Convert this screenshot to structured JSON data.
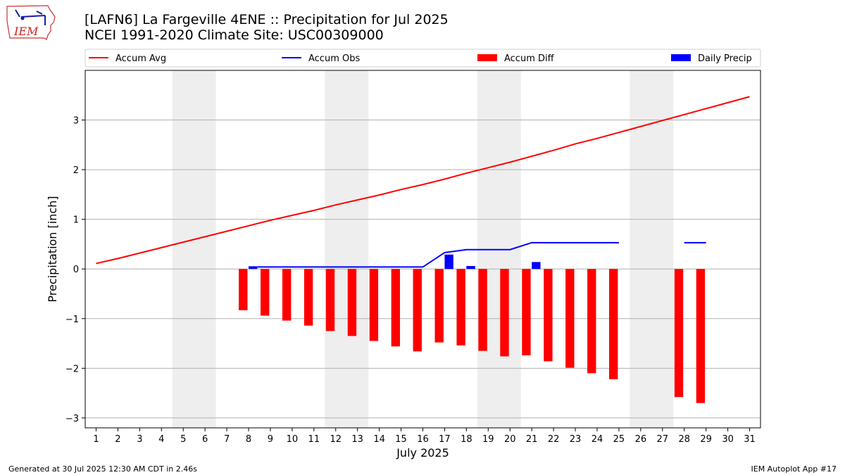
{
  "header": {
    "title": "[LAFN6] La Fargeville 4ENE :: Precipitation for Jul 2025",
    "subtitle": "NCEI 1991-2020 Climate Site: USC00309000"
  },
  "logo": {
    "text": "IEM",
    "icon": "iem-iowa-logo"
  },
  "footer": {
    "generated": "Generated at 30 Jul 2025 12:30 AM CDT in 2.46s",
    "app": "IEM Autoplot App #17"
  },
  "chart_data": {
    "type": "bar",
    "xlabel": "July 2025",
    "ylabel": "Precipitation [inch]",
    "xlim": [
      0.5,
      31.5
    ],
    "ylim": [
      -3.2,
      4.0
    ],
    "x_ticks": [
      1,
      2,
      3,
      4,
      5,
      6,
      7,
      8,
      9,
      10,
      11,
      12,
      13,
      14,
      15,
      16,
      17,
      18,
      19,
      20,
      21,
      22,
      23,
      24,
      25,
      26,
      27,
      28,
      29,
      30,
      31
    ],
    "y_ticks": [
      -3,
      -2,
      -1,
      0,
      1,
      2,
      3
    ],
    "y_tick_labels": [
      "−3",
      "−2",
      "−1",
      "0",
      "1",
      "2",
      "3"
    ],
    "grid": "horizontal",
    "legend_position": "top",
    "weekend_shading": [
      [
        4.5,
        6.5
      ],
      [
        11.5,
        13.5
      ],
      [
        18.5,
        20.5
      ],
      [
        25.5,
        27.5
      ]
    ],
    "colors": {
      "avg": "#ff0000",
      "obs": "#0000ff",
      "diff": "#ff0000",
      "daily": "#0000ff",
      "shade": "#eeeeee"
    },
    "series": [
      {
        "name": "Accum Avg",
        "kind": "line",
        "x": [
          1,
          2,
          3,
          4,
          5,
          6,
          7,
          8,
          9,
          10,
          11,
          12,
          13,
          14,
          15,
          16,
          17,
          18,
          19,
          20,
          21,
          22,
          23,
          24,
          25,
          26,
          27,
          28,
          29,
          30,
          31
        ],
        "values": [
          0.11,
          0.21,
          0.32,
          0.43,
          0.54,
          0.65,
          0.76,
          0.87,
          0.98,
          1.08,
          1.18,
          1.29,
          1.39,
          1.49,
          1.6,
          1.7,
          1.81,
          1.93,
          2.04,
          2.15,
          2.27,
          2.39,
          2.52,
          2.63,
          2.75,
          2.87,
          2.99,
          3.11,
          3.23,
          3.35,
          3.47
        ]
      },
      {
        "name": "Accum Obs",
        "kind": "line",
        "segments": [
          {
            "x": [
              8,
              9,
              10,
              11,
              12,
              13,
              14,
              15,
              16,
              17,
              18,
              19,
              20,
              21,
              22,
              23,
              24,
              25
            ],
            "values": [
              0.04,
              0.04,
              0.04,
              0.04,
              0.04,
              0.04,
              0.04,
              0.04,
              0.04,
              0.33,
              0.39,
              0.39,
              0.39,
              0.53,
              0.53,
              0.53,
              0.53,
              0.53
            ]
          },
          {
            "x": [
              28,
              29
            ],
            "values": [
              0.53,
              0.53
            ]
          }
        ]
      },
      {
        "name": "Accum Diff",
        "kind": "bar",
        "x": [
          8,
          9,
          10,
          11,
          12,
          13,
          14,
          15,
          16,
          17,
          18,
          19,
          20,
          21,
          22,
          23,
          24,
          25,
          28,
          29
        ],
        "values": [
          -0.83,
          -0.94,
          -1.04,
          -1.14,
          -1.25,
          -1.35,
          -1.45,
          -1.56,
          -1.66,
          -1.48,
          -1.54,
          -1.65,
          -1.76,
          -1.74,
          -1.86,
          -1.99,
          -2.1,
          -2.22,
          -2.58,
          -2.7
        ]
      },
      {
        "name": "Daily Precip",
        "kind": "bar",
        "x": [
          8,
          17,
          18,
          21
        ],
        "values": [
          0.04,
          0.29,
          0.06,
          0.14
        ]
      }
    ]
  }
}
